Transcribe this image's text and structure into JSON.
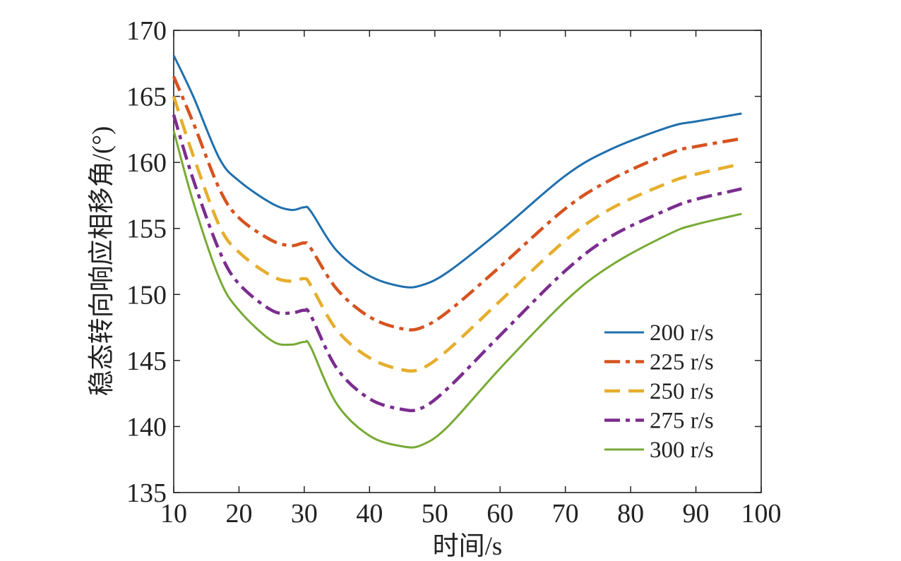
{
  "chart_data": {
    "type": "line",
    "title": "",
    "xlabel": "时间/s",
    "ylabel": "稳态转向响应相移角/(°)",
    "xlim": [
      10,
      100
    ],
    "ylim": [
      135,
      170
    ],
    "xticks": [
      10,
      20,
      30,
      40,
      50,
      60,
      70,
      80,
      90,
      100
    ],
    "yticks": [
      135,
      140,
      145,
      150,
      155,
      160,
      165,
      170
    ],
    "grid": false,
    "legend_position": "bottom-right",
    "x": [
      10,
      13,
      17,
      20,
      25,
      28,
      30,
      31,
      35,
      40,
      45,
      48,
      52,
      60,
      70,
      77,
      86,
      90,
      97
    ],
    "series": [
      {
        "name": "200 r/s",
        "color": "#1f6fad",
        "style": "solid",
        "values": [
          168.1,
          165.0,
          160.3,
          158.6,
          156.9,
          156.4,
          156.6,
          156.3,
          153.3,
          151.4,
          150.6,
          150.7,
          151.7,
          154.8,
          159.0,
          161.0,
          162.7,
          163.1,
          163.7
        ]
      },
      {
        "name": "225 r/s",
        "color": "#d6531f",
        "style": "dashdot",
        "values": [
          166.5,
          163.0,
          158.0,
          155.8,
          154.1,
          153.7,
          153.9,
          153.5,
          150.4,
          148.3,
          147.4,
          147.5,
          148.7,
          152.1,
          156.5,
          158.7,
          160.7,
          161.2,
          161.8
        ]
      },
      {
        "name": "250 r/s",
        "color": "#e6ae2c",
        "style": "dashed",
        "values": [
          165.0,
          160.5,
          155.2,
          153.2,
          151.4,
          151.0,
          151.2,
          150.7,
          147.3,
          145.2,
          144.3,
          144.4,
          145.8,
          149.5,
          154.1,
          156.5,
          158.5,
          159.1,
          159.9
        ]
      },
      {
        "name": "275 r/s",
        "color": "#7b2d8e",
        "style": "dashdot",
        "values": [
          163.6,
          158.7,
          153.3,
          150.8,
          148.8,
          148.6,
          148.8,
          148.4,
          144.4,
          142.1,
          141.3,
          141.4,
          142.9,
          146.9,
          151.8,
          154.4,
          156.5,
          157.2,
          158.0
        ]
      },
      {
        "name": "300 r/s",
        "color": "#77aa35",
        "style": "solid",
        "values": [
          162.4,
          157.0,
          151.2,
          148.8,
          146.5,
          146.2,
          146.4,
          146.0,
          141.7,
          139.3,
          138.5,
          138.6,
          140.0,
          144.4,
          149.5,
          152.2,
          154.6,
          155.3,
          156.1
        ]
      }
    ]
  }
}
